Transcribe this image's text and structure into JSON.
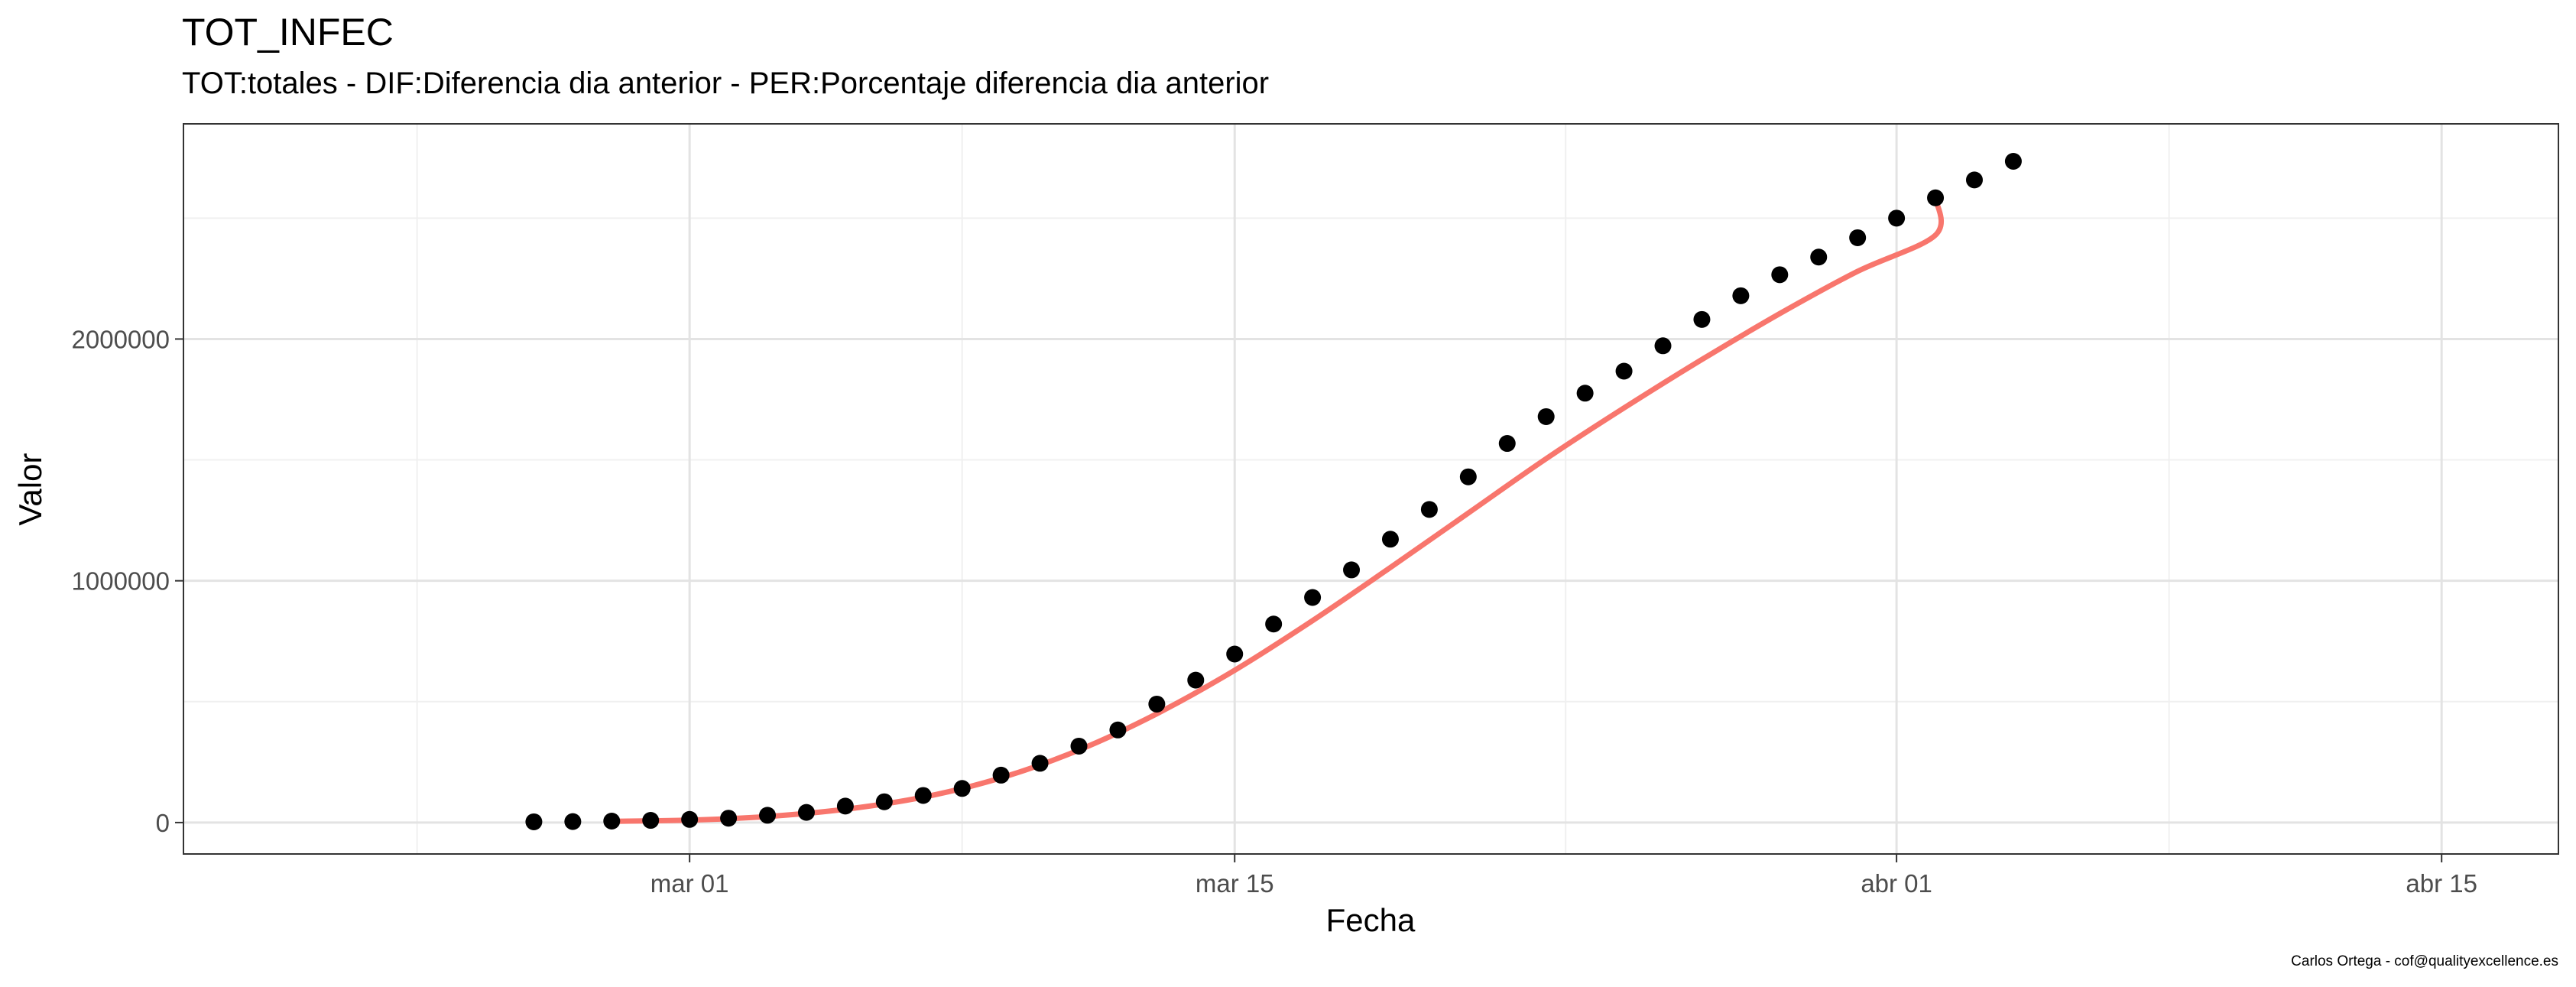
{
  "chart_data": {
    "type": "scatter",
    "title": "TOT_INFEC",
    "subtitle": "TOT:totales - DIF:Diferencia dia anterior - PER:Porcentaje diferencia dia anterior",
    "caption": "Carlos Ortega - cof@qualityexcellence.es",
    "xlabel": "Fecha",
    "ylabel": "Valor",
    "x_axis": {
      "scale": "date",
      "range": [
        "2020-02-17",
        "2020-04-18"
      ],
      "ticks": [
        {
          "date": "2020-03-01",
          "label": "mar 01"
        },
        {
          "date": "2020-03-15",
          "label": "mar 15"
        },
        {
          "date": "2020-04-01",
          "label": "abr 01"
        },
        {
          "date": "2020-04-15",
          "label": "abr 15"
        }
      ]
    },
    "y_axis": {
      "range": [
        -130000,
        2890000
      ],
      "ticks": [
        {
          "value": 0,
          "label": "0"
        },
        {
          "value": 1000000,
          "label": "1000000"
        },
        {
          "value": 2000000,
          "label": "2000000"
        }
      ]
    },
    "grid": true,
    "legend": "none",
    "series": [
      {
        "kind": "points",
        "color": "#000000",
        "points": [
          {
            "x": "2020-02-26",
            "y": 3000
          },
          {
            "x": "2020-02-27",
            "y": 4000
          },
          {
            "x": "2020-02-28",
            "y": 6000
          },
          {
            "x": "2020-02-29",
            "y": 9000
          },
          {
            "x": "2020-03-01",
            "y": 13000
          },
          {
            "x": "2020-03-02",
            "y": 18000
          },
          {
            "x": "2020-03-03",
            "y": 30000
          },
          {
            "x": "2020-03-04",
            "y": 42000
          },
          {
            "x": "2020-03-05",
            "y": 68000
          },
          {
            "x": "2020-03-06",
            "y": 86000
          },
          {
            "x": "2020-03-07",
            "y": 112000
          },
          {
            "x": "2020-03-08",
            "y": 141000
          },
          {
            "x": "2020-03-09",
            "y": 196000
          },
          {
            "x": "2020-03-10",
            "y": 245000
          },
          {
            "x": "2020-03-11",
            "y": 316000
          },
          {
            "x": "2020-03-12",
            "y": 383000
          },
          {
            "x": "2020-03-13",
            "y": 490000
          },
          {
            "x": "2020-03-14",
            "y": 589000
          },
          {
            "x": "2020-03-15",
            "y": 697000
          },
          {
            "x": "2020-03-16",
            "y": 821000
          },
          {
            "x": "2020-03-17",
            "y": 931000
          },
          {
            "x": "2020-03-18",
            "y": 1045000
          },
          {
            "x": "2020-03-19",
            "y": 1172000
          },
          {
            "x": "2020-03-20",
            "y": 1295000
          },
          {
            "x": "2020-03-21",
            "y": 1430000
          },
          {
            "x": "2020-03-22",
            "y": 1568000
          },
          {
            "x": "2020-03-23",
            "y": 1679000
          },
          {
            "x": "2020-03-24",
            "y": 1776000
          },
          {
            "x": "2020-03-25",
            "y": 1867000
          },
          {
            "x": "2020-03-26",
            "y": 1972000
          },
          {
            "x": "2020-03-27",
            "y": 2081000
          },
          {
            "x": "2020-03-28",
            "y": 2179000
          },
          {
            "x": "2020-03-29",
            "y": 2266000
          },
          {
            "x": "2020-03-30",
            "y": 2339000
          },
          {
            "x": "2020-03-31",
            "y": 2419000
          },
          {
            "x": "2020-04-01",
            "y": 2500000
          },
          {
            "x": "2020-04-02",
            "y": 2584000
          },
          {
            "x": "2020-04-03",
            "y": 2658000
          },
          {
            "x": "2020-04-04",
            "y": 2735000
          }
        ]
      },
      {
        "kind": "smooth-line",
        "color": "#F8766D",
        "points": [
          {
            "x": "2020-02-28",
            "y": 5000
          },
          {
            "x": "2020-03-01",
            "y": 10000
          },
          {
            "x": "2020-03-03",
            "y": 25000
          },
          {
            "x": "2020-03-05",
            "y": 55000
          },
          {
            "x": "2020-03-07",
            "y": 105000
          },
          {
            "x": "2020-03-09",
            "y": 185000
          },
          {
            "x": "2020-03-11",
            "y": 300000
          },
          {
            "x": "2020-03-13",
            "y": 450000
          },
          {
            "x": "2020-03-15",
            "y": 630000
          },
          {
            "x": "2020-03-17",
            "y": 835000
          },
          {
            "x": "2020-03-19",
            "y": 1055000
          },
          {
            "x": "2020-03-21",
            "y": 1280000
          },
          {
            "x": "2020-03-23",
            "y": 1505000
          },
          {
            "x": "2020-03-25",
            "y": 1715000
          },
          {
            "x": "2020-03-27",
            "y": 1915000
          },
          {
            "x": "2020-03-29",
            "y": 2105000
          },
          {
            "x": "2020-03-31",
            "y": 2280000
          },
          {
            "x": "2020-04-02",
            "y": 2430000
          },
          {
            "x": "2020-04-02",
            "y": 2584000
          }
        ]
      }
    ]
  }
}
